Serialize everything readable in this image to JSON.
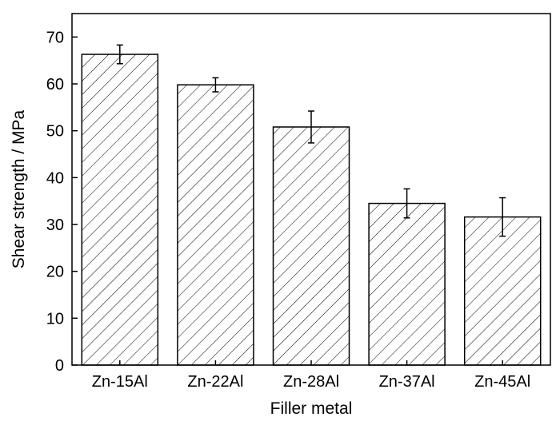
{
  "chart_data": {
    "type": "bar",
    "categories": [
      "Zn-15Al",
      "Zn-22Al",
      "Zn-28Al",
      "Zn-37Al",
      "Zn-45Al"
    ],
    "values": [
      66.3,
      59.8,
      50.8,
      34.5,
      31.6
    ],
    "errors": [
      2.0,
      1.5,
      3.4,
      3.1,
      4.1
    ],
    "xlabel": "Filler metal",
    "ylabel": "Shear strength / MPa",
    "ylim": [
      0,
      75
    ],
    "yticks": [
      0,
      10,
      20,
      30,
      40,
      50,
      60,
      70
    ],
    "grid": false,
    "bar_fill": "hatched",
    "colors": {
      "bar_edge": "#000000",
      "hatch": "#000000",
      "background": "#ffffff"
    }
  }
}
